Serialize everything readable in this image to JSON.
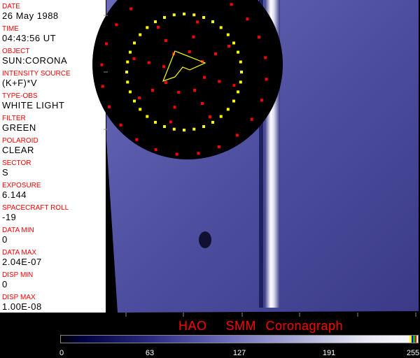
{
  "sidebar": {
    "fields": [
      {
        "label": "DATE",
        "value": "26 May 1988"
      },
      {
        "label": "TIME",
        "value": "04:43:56 UT"
      },
      {
        "label": "OBJECT",
        "value": "SUN:CORONA"
      },
      {
        "label": "INTENSITY SOURCE",
        "value": "(K+F)*V"
      },
      {
        "label": "TYPE-OBS",
        "value": "WHITE LIGHT"
      },
      {
        "label": "FILTER",
        "value": "GREEN"
      },
      {
        "label": "POLAROID",
        "value": "CLEAR"
      },
      {
        "label": "SECTOR",
        "value": "S"
      },
      {
        "label": "EXPOSURE",
        "value": "6.144"
      },
      {
        "label": "SPACECRAFT ROLL",
        "value": "-19"
      },
      {
        "label": "DATA MIN",
        "value": "0"
      },
      {
        "label": "DATA MAX",
        "value": "2.04E-07"
      },
      {
        "label": "DISP MIN",
        "value": "0"
      },
      {
        "label": "DISP MAX",
        "value": "1.00E-08"
      }
    ]
  },
  "title": "HAO  SMM Coronagraph",
  "colorbar": {
    "ticks": [
      "0",
      "63",
      "127",
      "191",
      "255"
    ],
    "colors": {
      "dark": "#000000",
      "mid": "#6868b8",
      "light": "#fafafa"
    },
    "end_markers": [
      "#ffff00",
      "#0000ff",
      "#00c000",
      "#ff0000"
    ]
  },
  "overlay_colors": {
    "grid_inner": "#ffff00",
    "grid_outer": "#ff0000",
    "image_tint": "#5a5aa8"
  }
}
